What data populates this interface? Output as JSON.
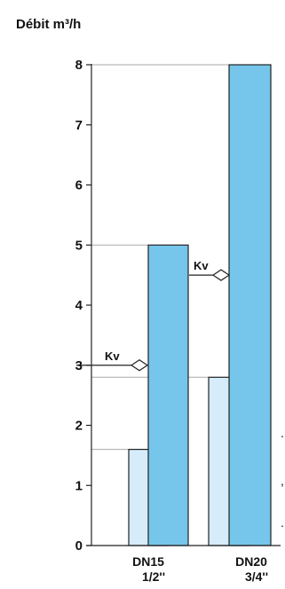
{
  "chart_data": {
    "type": "bar",
    "title": "Débit m³/h",
    "xlabel": "",
    "ylabel": "",
    "ylim": [
      0,
      8
    ],
    "yticks": [
      "0",
      "1",
      "2",
      "3",
      "4",
      "5",
      "6",
      "7",
      "8"
    ],
    "categories": [
      {
        "name": "DN15",
        "sub": "1/2''"
      },
      {
        "name": "DN20",
        "sub": "3/4''"
      }
    ],
    "series": [
      {
        "values": [
          1.6,
          2.8
        ],
        "color": "#d6ecfa"
      },
      {
        "values": [
          5.0,
          8.0
        ],
        "color": "#76c5ea"
      }
    ],
    "kv": {
      "label": "Kv",
      "values": [
        3.0,
        4.5
      ]
    },
    "grid": false,
    "legend": "none"
  },
  "edge_fragments": [
    ".",
    ",",
    "."
  ]
}
